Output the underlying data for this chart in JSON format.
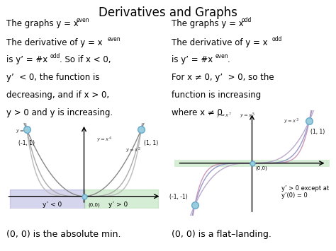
{
  "title": "Derivatives and Graphs",
  "bg_color": "#ffffff",
  "bottom_left": "(0, 0) is the absolute min.",
  "bottom_right": "(0, 0) is a flat–landing.",
  "left_shade_color": "#8888cc",
  "right_shade_color": "#88cc88",
  "curve_colors_even": [
    "#bbbbbb",
    "#aaaaaa",
    "#888888"
  ],
  "curve_colors_odd": [
    "#cc99bb",
    "#9999cc",
    "#bbaacc"
  ]
}
